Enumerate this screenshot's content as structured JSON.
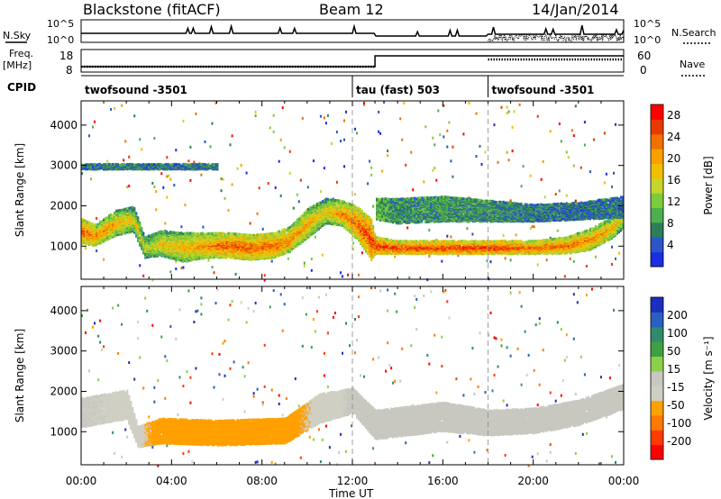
{
  "header": {
    "station": "Blackstone (fitACF)",
    "beam": "Beam 12",
    "date": "14/Jan/2014"
  },
  "colors": {
    "power": [
      "#1a2de0",
      "#2b55c8",
      "#2e7d5a",
      "#4caf50",
      "#7ccd3c",
      "#c6d62c",
      "#f0c000",
      "#f7a000",
      "#f07000",
      "#e83a00",
      "#ff0000"
    ],
    "velocity": [
      "#ff0000",
      "#ff3a00",
      "#ff7a00",
      "#ffa000",
      "#cfcfc4",
      "#c8c8c0",
      "#8ad04a",
      "#3fa043",
      "#2f8b6a",
      "#2a5fbf",
      "#1d2fbf"
    ]
  },
  "header_panel": {
    "nsky_label": "N.Sky",
    "nsky_ticks": [
      "10^5",
      "10^0"
    ],
    "nsearch_label": "N.Search",
    "nsearch_ticks": [
      "10^5",
      "10^0"
    ],
    "freq_label": "Freq.",
    "freq_unit": "[MHz]",
    "freq_ticks": [
      "18",
      "8"
    ],
    "nave_label": "Nave",
    "nave_ticks": [
      "60",
      "0"
    ],
    "cpid_label": "CPID"
  },
  "cpid_segments": [
    {
      "name": "twofsound  -3501",
      "start": 0,
      "end": 12
    },
    {
      "name": "tau (fast) 503",
      "start": 12,
      "end": 18
    },
    {
      "name": "twofsound  -3501",
      "start": 18,
      "end": 24
    }
  ],
  "chart_data": [
    {
      "type": "heatmap",
      "title": "",
      "xlabel": "Time UT",
      "ylabel": "Slant Range [km]",
      "xlim": [
        0,
        24
      ],
      "ylim": [
        180,
        4600
      ],
      "x_ticks": [
        "00:00",
        "04:00",
        "08:00",
        "12:00",
        "16:00",
        "20:00",
        "00:00"
      ],
      "y_ticks": [
        1000,
        2000,
        3000,
        4000
      ],
      "colorbar": {
        "label": "Power [dB]",
        "ticks": [
          4,
          8,
          12,
          16,
          20,
          24,
          28
        ],
        "range": [
          0,
          30
        ]
      },
      "bands": [
        {
          "name": "main",
          "t": [
            0,
            0.6,
            1.5,
            2.3,
            2.8,
            3.5,
            4.5,
            5.5,
            6.5,
            7.5,
            8.5,
            9.2,
            10,
            10.8,
            11.5,
            12.2,
            12.8,
            13,
            14,
            16,
            18,
            20,
            21.5,
            22.5,
            23.5,
            24
          ],
          "c": [
            1400,
            1300,
            1600,
            1700,
            1000,
            1100,
            1000,
            1050,
            1050,
            1000,
            1050,
            1200,
            1600,
            1900,
            1850,
            1600,
            1200,
            1050,
            1000,
            1000,
            1000,
            1000,
            1050,
            1200,
            1500,
            1800
          ],
          "w": [
            300,
            250,
            300,
            300,
            250,
            300,
            350,
            300,
            300,
            300,
            300,
            300,
            350,
            300,
            300,
            400,
            500,
            200,
            150,
            150,
            150,
            150,
            200,
            250,
            250,
            300
          ],
          "val": [
            24,
            22,
            20,
            18,
            16,
            18,
            20,
            22,
            24,
            24,
            24,
            22,
            20,
            18,
            22,
            24,
            26,
            26,
            26,
            26,
            26,
            24,
            24,
            22,
            20,
            16
          ]
        },
        {
          "name": "upper",
          "t": [
            13,
            14,
            16,
            18,
            20,
            22,
            24
          ],
          "c": [
            1950,
            1900,
            1950,
            1900,
            1850,
            1900,
            2000
          ],
          "w": [
            250,
            300,
            300,
            250,
            200,
            200,
            250
          ],
          "val": [
            10,
            8,
            8,
            8,
            6,
            6,
            6
          ]
        },
        {
          "name": "echo3000",
          "t": [
            0,
            2,
            4,
            6
          ],
          "c": [
            3000,
            3000,
            3000,
            3000
          ],
          "w": [
            60,
            60,
            60,
            60
          ],
          "val": [
            6,
            6,
            6,
            6
          ]
        }
      ]
    },
    {
      "type": "heatmap",
      "title": "",
      "xlabel": "Time UT",
      "ylabel": "Slant Range [km]",
      "xlim": [
        0,
        24
      ],
      "ylim": [
        180,
        4600
      ],
      "x_ticks": [
        "00:00",
        "04:00",
        "08:00",
        "12:00",
        "16:00",
        "20:00",
        "00:00"
      ],
      "y_ticks": [
        1000,
        2000,
        3000,
        4000
      ],
      "colorbar": {
        "label": "Velocity [m s⁻¹]",
        "ticks": [
          200,
          100,
          50,
          15,
          -15,
          -50,
          -100,
          -200
        ],
        "range": [
          -250,
          250
        ]
      },
      "bands": [
        {
          "name": "main",
          "t": [
            0,
            2,
            2.5,
            3.5,
            6,
            9,
            10.5,
            12,
            13,
            16,
            18,
            20,
            22,
            24
          ],
          "c": [
            1500,
            1700,
            900,
            1050,
            1000,
            1050,
            1600,
            1800,
            1200,
            1400,
            1250,
            1300,
            1500,
            1900
          ],
          "w": [
            350,
            350,
            250,
            300,
            300,
            300,
            350,
            300,
            350,
            350,
            300,
            300,
            300,
            300
          ],
          "val": [
            -20,
            -30,
            -60,
            -80,
            -80,
            -80,
            -60,
            -10,
            0,
            0,
            0,
            -5,
            -10,
            -20
          ]
        }
      ]
    }
  ]
}
